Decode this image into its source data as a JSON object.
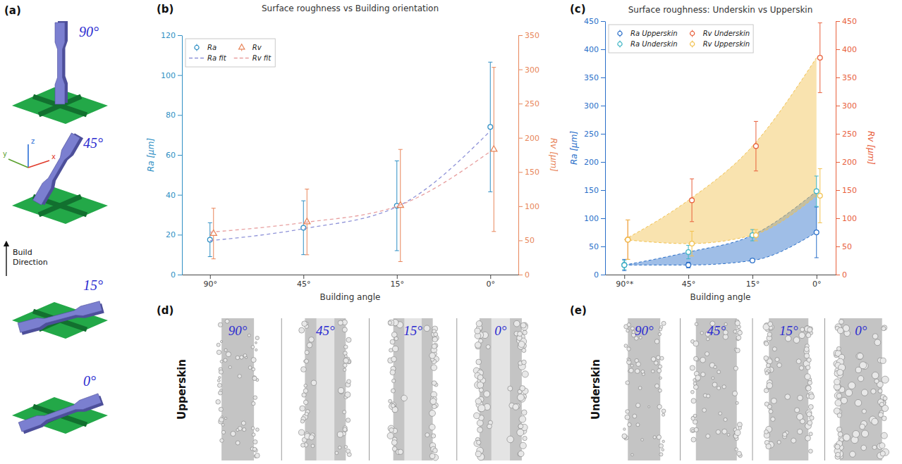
{
  "chart_data": [
    {
      "type": "scatter",
      "title": "Surface roughness vs Building orientation",
      "x_label": "Building angle",
      "y_label": "Ra [μm]",
      "y2_label": "Rv [μm]",
      "categories": [
        "90°",
        "45°",
        "15°",
        "0°"
      ],
      "ylim": [
        0,
        120
      ],
      "yticks": [
        0,
        20,
        40,
        60,
        80,
        100,
        120
      ],
      "y2lim": [
        0,
        350
      ],
      "y2ticks": [
        0,
        50,
        100,
        150,
        200,
        250,
        300,
        350
      ],
      "legend": "upper left",
      "series": [
        {
          "name": "Ra",
          "type": "scatter",
          "marker": "circle",
          "color": "#2f8fc4",
          "values": [
            17.5,
            23.5,
            34.5,
            74
          ],
          "errors": [
            8.5,
            13.5,
            22.5,
            32.5
          ]
        },
        {
          "name": "Ra fit",
          "type": "line",
          "line_style": "dashed",
          "color": "#8f93d8",
          "values": [
            17,
            23,
            34,
            72
          ]
        },
        {
          "name": "Rv",
          "type": "scatter",
          "marker": "triangle",
          "color": "#e8855a",
          "axis": "y2",
          "values": [
            60,
            77,
            101,
            183
          ],
          "errors": [
            37,
            48,
            82,
            120
          ]
        },
        {
          "name": "Rv fit",
          "type": "line",
          "line_style": "dashed",
          "color": "#e8a0a0",
          "axis": "y2",
          "values": [
            62,
            76,
            100,
            180
          ]
        }
      ]
    },
    {
      "type": "area",
      "title": "Surface roughness: Underskin vs Upperskin",
      "x_label": "Building angle",
      "y_label": "Ra [μm]",
      "y2_label": "Rv [μm]",
      "categories": [
        "90°*",
        "45°",
        "15°",
        "0°"
      ],
      "ylim": [
        0,
        450
      ],
      "yticks": [
        0,
        50,
        100,
        150,
        200,
        250,
        300,
        350,
        400,
        450
      ],
      "y2lim": [
        0,
        450
      ],
      "y2ticks": [
        0,
        50,
        100,
        150,
        200,
        250,
        300,
        350,
        400,
        450
      ],
      "legend": "upper left",
      "series": [
        {
          "name": "Ra Upperskin",
          "type": "scatter",
          "marker": "circle",
          "color": "#2a6fc9",
          "values": [
            17,
            17,
            25,
            75
          ],
          "errors": [
            10,
            5,
            3,
            45
          ]
        },
        {
          "name": "Ra Underskin",
          "type": "scatter",
          "marker": "circle",
          "color": "#3cb4c4",
          "values": [
            17,
            40,
            70,
            148
          ],
          "errors": [
            8,
            12,
            10,
            27
          ]
        },
        {
          "name": "Rv Underskin",
          "type": "scatter",
          "marker": "circle",
          "color": "#e8603c",
          "axis": "y2",
          "values": [
            62,
            132,
            228,
            385
          ],
          "errors": [
            35,
            38,
            44,
            62
          ]
        },
        {
          "name": "Rv Upperskin",
          "type": "scatter",
          "marker": "circle",
          "color": "#f2c14e",
          "axis": "y2",
          "values": [
            62,
            55,
            70,
            140
          ],
          "errors": [
            35,
            22,
            10,
            48
          ]
        }
      ]
    }
  ],
  "figure": {
    "panel_labels": [
      "(a)",
      "(b)",
      "(c)",
      "(d)",
      "(e)"
    ]
  },
  "build_diagram": {
    "orientations": [
      "90°",
      "45°",
      "15°",
      "0°"
    ],
    "axes": [
      "z",
      "y",
      "x"
    ],
    "arrow_label": "Build Direction"
  },
  "micrographs": [
    {
      "label": "Upperskin",
      "angles": [
        "90°",
        "45°",
        "15°",
        "0°"
      ]
    },
    {
      "label": "Underskin",
      "angles": [
        "90°",
        "45°",
        "15°",
        "0°"
      ]
    }
  ]
}
